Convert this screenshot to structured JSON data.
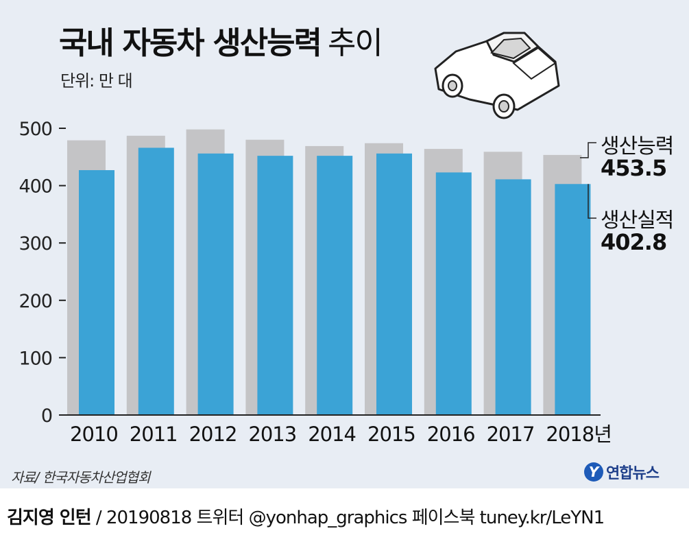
{
  "title": "국내 자동차 생산능력",
  "title_tail": "추이",
  "unit": "단위: 만 대",
  "legend": {
    "capacity_label": "생산능력",
    "capacity_value": "453.5",
    "production_label": "생산실적",
    "production_value": "402.8"
  },
  "source": "자료/ 한국자동차산업협회",
  "logo_text": "연합뉴스",
  "logo_mark": "Y",
  "credit": {
    "name": "김지영 인턴",
    "rest": " / 20190818  트위터 @yonhap_graphics  페이스북 tuney.kr/LeYN1"
  },
  "colors": {
    "capacity": "#c4c4c6",
    "production": "#3ba3d6",
    "background": "#e8edf4"
  },
  "icons": {
    "car": "car-illustration-icon"
  },
  "chart_data": {
    "type": "bar",
    "categories": [
      "2010",
      "2011",
      "2012",
      "2013",
      "2014",
      "2015",
      "2016",
      "2017",
      "2018년"
    ],
    "series": [
      {
        "name": "생산능력",
        "values": [
          479,
          487,
          498,
          480,
          469,
          474,
          464,
          459,
          453.5
        ]
      },
      {
        "name": "생산실적",
        "values": [
          427,
          466,
          456,
          452,
          452,
          456,
          423,
          411,
          402.8
        ]
      }
    ],
    "ylim": [
      0,
      500
    ],
    "yticks": [
      0,
      100,
      200,
      300,
      400,
      500
    ],
    "grid": false
  }
}
